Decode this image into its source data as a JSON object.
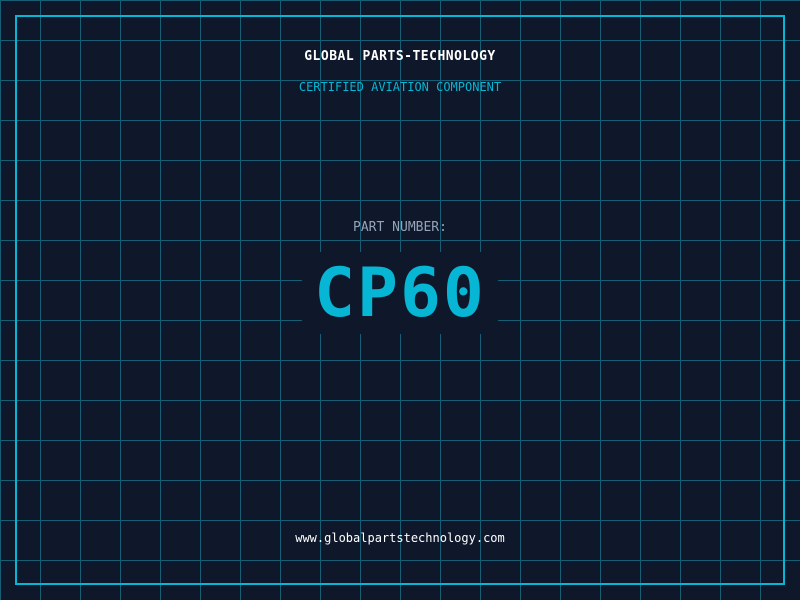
{
  "header": {
    "company": "GLOBAL PARTS-TECHNOLOGY",
    "subtitle": "CERTIFIED AVIATION COMPONENT"
  },
  "part": {
    "label": "PART NUMBER:",
    "number": "CP60"
  },
  "footer": {
    "url": "www.globalpartstechnology.com"
  },
  "colors": {
    "background": "#0f172a",
    "accent": "#06b6d4",
    "grid": "#155e75",
    "label": "#94a3b8"
  }
}
